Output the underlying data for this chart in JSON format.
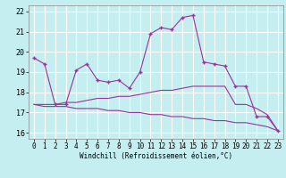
{
  "xlabel": "Windchill (Refroidissement éolien,°C)",
  "background_color": "#c5eef0",
  "line_color": "#993399",
  "grid_color": "#ffffff",
  "xlim": [
    -0.5,
    23.5
  ],
  "ylim": [
    15.7,
    22.3
  ],
  "xticks": [
    0,
    1,
    2,
    3,
    4,
    5,
    6,
    7,
    8,
    9,
    10,
    11,
    12,
    13,
    14,
    15,
    16,
    17,
    18,
    19,
    20,
    21,
    22,
    23
  ],
  "yticks": [
    16,
    17,
    18,
    19,
    20,
    21,
    22
  ],
  "series1_x": [
    0,
    1,
    2,
    3,
    4,
    5,
    6,
    7,
    8,
    9,
    10,
    11,
    12,
    13,
    14,
    15,
    16,
    17,
    18,
    19,
    20,
    21,
    22,
    23
  ],
  "series1_y": [
    19.7,
    19.4,
    17.4,
    17.4,
    19.1,
    19.4,
    18.6,
    18.5,
    18.6,
    18.2,
    19.0,
    20.9,
    21.2,
    21.1,
    21.7,
    21.8,
    19.5,
    19.4,
    19.3,
    18.3,
    18.3,
    16.8,
    16.8,
    16.1
  ],
  "series2_x": [
    0,
    1,
    2,
    3,
    4,
    5,
    6,
    7,
    8,
    9,
    10,
    11,
    12,
    13,
    14,
    15,
    16,
    17,
    18,
    19,
    20,
    21,
    22,
    23
  ],
  "series2_y": [
    17.4,
    17.4,
    17.4,
    17.5,
    17.5,
    17.6,
    17.7,
    17.7,
    17.8,
    17.8,
    17.9,
    18.0,
    18.1,
    18.1,
    18.2,
    18.3,
    18.3,
    18.3,
    18.3,
    17.4,
    17.4,
    17.2,
    16.9,
    16.1
  ],
  "series3_x": [
    0,
    1,
    2,
    3,
    4,
    5,
    6,
    7,
    8,
    9,
    10,
    11,
    12,
    13,
    14,
    15,
    16,
    17,
    18,
    19,
    20,
    21,
    22,
    23
  ],
  "series3_y": [
    17.4,
    17.3,
    17.3,
    17.3,
    17.2,
    17.2,
    17.2,
    17.1,
    17.1,
    17.0,
    17.0,
    16.9,
    16.9,
    16.8,
    16.8,
    16.7,
    16.7,
    16.6,
    16.6,
    16.5,
    16.5,
    16.4,
    16.3,
    16.1
  ]
}
